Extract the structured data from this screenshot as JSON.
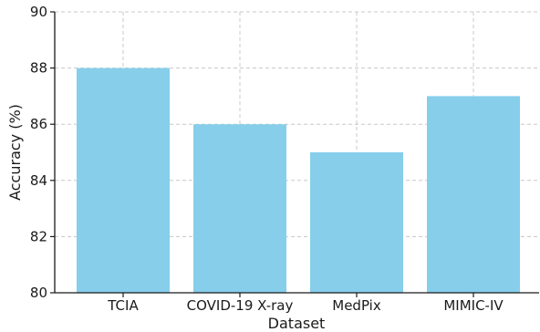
{
  "chart_data": {
    "type": "bar",
    "categories": [
      "TCIA",
      "COVID-19 X-ray",
      "MedPix",
      "MIMIC-IV"
    ],
    "values": [
      88,
      86,
      85,
      87
    ],
    "title": "",
    "xlabel": "Dataset",
    "ylabel": "Accuracy (%)",
    "ylim": [
      80,
      90
    ],
    "yticks": [
      80,
      82,
      84,
      86,
      88,
      90
    ],
    "grid": true,
    "bar_color": "#87ceeb"
  }
}
